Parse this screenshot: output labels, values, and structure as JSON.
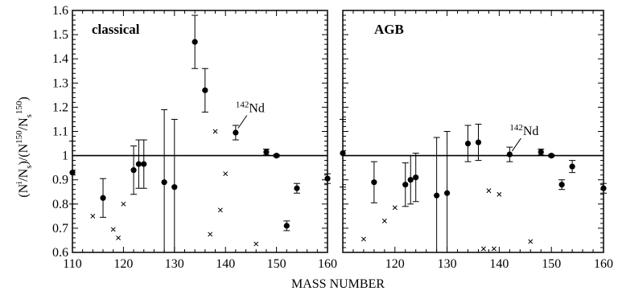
{
  "chart_data": {
    "type": "scatter",
    "xlabel": "MASS NUMBER",
    "ylabel_parts": {
      "open": "(N",
      "sup1": "i",
      "mid1": "/N",
      "sub1": "s",
      "mid2": ")/(N",
      "sup2": "150",
      "mid3": "/N",
      "sub2": "s",
      "sup3": "150",
      "close": ")"
    },
    "ylim": [
      0.6,
      1.6
    ],
    "yticks": [
      0.6,
      0.7,
      0.8,
      0.9,
      1,
      1.1,
      1.2,
      1.3,
      1.4,
      1.5,
      1.6
    ],
    "reference_line": 1.0,
    "panels": [
      {
        "label": "classical",
        "xlim": [
          110,
          160
        ],
        "xticks": [
          110,
          120,
          130,
          140,
          150,
          160
        ],
        "annotation": {
          "sup": "142",
          "text": "Nd",
          "x": 142,
          "y": 1.1
        },
        "points": [
          {
            "x": 110,
            "y": 0.93,
            "yerr": 0.13
          },
          {
            "x": 116,
            "y": 0.825,
            "yerr": 0.08
          },
          {
            "x": 122,
            "y": 0.94,
            "yerr": 0.1
          },
          {
            "x": 123,
            "y": 0.965,
            "yerr": 0.1
          },
          {
            "x": 124,
            "y": 0.965,
            "yerr": 0.1
          },
          {
            "x": 128,
            "y": 0.89,
            "yerr": 0.3
          },
          {
            "x": 130,
            "y": 0.87,
            "yerr": 0.28
          },
          {
            "x": 134,
            "y": 1.47,
            "yerr": 0.11
          },
          {
            "x": 136,
            "y": 1.27,
            "yerr": 0.09
          },
          {
            "x": 142,
            "y": 1.095,
            "yerr": 0.03
          },
          {
            "x": 148,
            "y": 1.015,
            "yerr": 0.012
          },
          {
            "x": 150,
            "y": 1.0,
            "yerr": 0.005
          },
          {
            "x": 152,
            "y": 0.71,
            "yerr": 0.02
          },
          {
            "x": 154,
            "y": 0.865,
            "yerr": 0.02
          },
          {
            "x": 160,
            "y": 0.905,
            "yerr": 0.02
          }
        ],
        "crosses": [
          {
            "x": 114,
            "y": 0.75
          },
          {
            "x": 118,
            "y": 0.695
          },
          {
            "x": 119,
            "y": 0.66
          },
          {
            "x": 120,
            "y": 0.8
          },
          {
            "x": 137,
            "y": 0.675
          },
          {
            "x": 138,
            "y": 1.1
          },
          {
            "x": 139,
            "y": 0.775
          },
          {
            "x": 140,
            "y": 0.925
          },
          {
            "x": 146,
            "y": 0.635
          }
        ]
      },
      {
        "label": "AGB",
        "xlim": [
          110,
          160
        ],
        "xticks": [
          120,
          130,
          140,
          150,
          160
        ],
        "annotation": {
          "sup": "142",
          "text": "Nd",
          "x": 142,
          "y": 1.005
        },
        "points": [
          {
            "x": 110,
            "y": 1.01,
            "yerr": 0.14
          },
          {
            "x": 116,
            "y": 0.89,
            "yerr": 0.085
          },
          {
            "x": 122,
            "y": 0.88,
            "yerr": 0.09
          },
          {
            "x": 123,
            "y": 0.9,
            "yerr": 0.1
          },
          {
            "x": 124,
            "y": 0.91,
            "yerr": 0.1
          },
          {
            "x": 128,
            "y": 0.835,
            "yerr": 0.24
          },
          {
            "x": 130,
            "y": 0.845,
            "yerr": 0.255
          },
          {
            "x": 134,
            "y": 1.05,
            "yerr": 0.075
          },
          {
            "x": 136,
            "y": 1.055,
            "yerr": 0.075
          },
          {
            "x": 142,
            "y": 1.005,
            "yerr": 0.03
          },
          {
            "x": 148,
            "y": 1.015,
            "yerr": 0.012
          },
          {
            "x": 150,
            "y": 1.0,
            "yerr": 0.005
          },
          {
            "x": 152,
            "y": 0.88,
            "yerr": 0.02
          },
          {
            "x": 154,
            "y": 0.955,
            "yerr": 0.025
          },
          {
            "x": 160,
            "y": 0.865,
            "yerr": 0.02
          }
        ],
        "crosses": [
          {
            "x": 114,
            "y": 0.655
          },
          {
            "x": 118,
            "y": 0.73
          },
          {
            "x": 120,
            "y": 0.785
          },
          {
            "x": 137,
            "y": 0.615
          },
          {
            "x": 138,
            "y": 0.855
          },
          {
            "x": 139,
            "y": 0.615
          },
          {
            "x": 140,
            "y": 0.84
          },
          {
            "x": 146,
            "y": 0.645
          }
        ]
      }
    ]
  }
}
